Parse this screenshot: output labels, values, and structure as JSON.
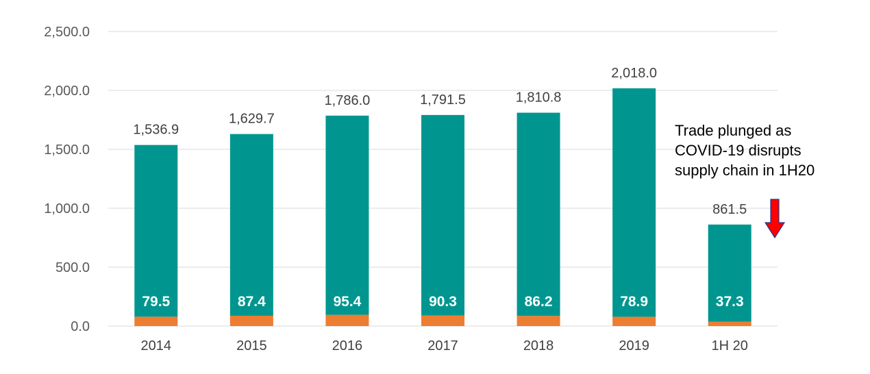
{
  "chart_data": {
    "type": "bar",
    "stacked": true,
    "categories": [
      "2014",
      "2015",
      "2016",
      "2017",
      "2018",
      "2019",
      "1H 20"
    ],
    "series": [
      {
        "values": [
          79.5,
          87.4,
          95.4,
          90.3,
          86.2,
          78.9,
          37.3
        ],
        "color": "#ED7D31"
      },
      {
        "values": [
          1457.4,
          1542.3,
          1690.6,
          1701.2,
          1724.6,
          1939.1,
          824.2
        ],
        "color": "#00968F"
      }
    ],
    "totals": [
      1536.9,
      1629.7,
      1786.0,
      1791.5,
      1810.8,
      2018.0,
      861.5
    ],
    "total_labels": [
      "1,536.9",
      "1,629.7",
      "1,786.0",
      "1,791.5",
      "1,810.8",
      "2,018.0",
      "861.5"
    ],
    "segment_labels": [
      "79.5",
      "87.4",
      "95.4",
      "90.3",
      "86.2",
      "78.9",
      "37.3"
    ],
    "ylim": [
      0,
      2500
    ],
    "yticks": [
      0,
      500,
      1000,
      1500,
      2000,
      2500
    ],
    "ytick_labels": [
      "0.0",
      "500.0",
      "1,000.0",
      "1,500.0",
      "2,000.0",
      "2,500.0"
    ],
    "grid": true,
    "annotation": {
      "lines": [
        "Trade plunged as",
        "COVID-19 disrupts",
        "supply chain in 1H20"
      ],
      "arrow": "down",
      "arrow_color": "#FF0000"
    }
  }
}
